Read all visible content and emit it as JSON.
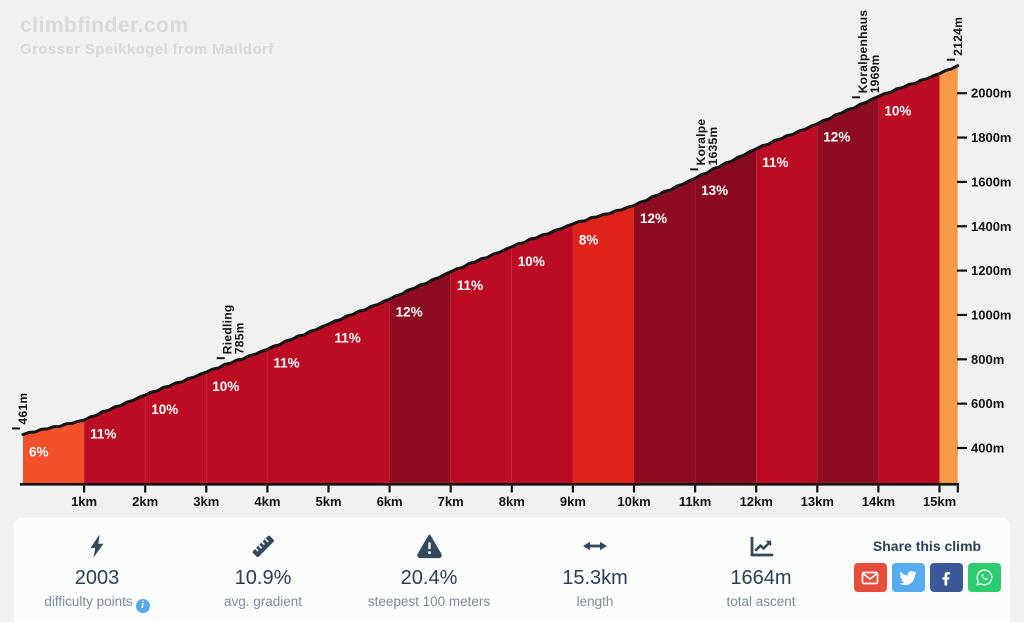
{
  "header": {
    "logo": "climbfinder.com",
    "subtitle": "Grosser Speikkogel from Maildorf"
  },
  "chart_data": {
    "type": "area",
    "title": "Grosser Speikkogel from Maildorf elevation profile",
    "x_unit": "km",
    "y_unit": "m",
    "length_km": 15.3,
    "start_elevation_m": 461,
    "end_elevation_m": 2124,
    "line_color": "#141414",
    "axis_color": "#141414",
    "profile_km": [
      0,
      1,
      2,
      3,
      4,
      5,
      6,
      7,
      8,
      9,
      10,
      11,
      12,
      13,
      14,
      15,
      15.3
    ],
    "profile_elev_m": [
      461,
      526,
      639,
      742,
      845,
      958,
      1071,
      1194,
      1307,
      1410,
      1493,
      1616,
      1749,
      1862,
      1985,
      2088,
      2124
    ],
    "segments": [
      {
        "from": 0,
        "to": 1,
        "label": "6%",
        "color": "#f3512c"
      },
      {
        "from": 1,
        "to": 2,
        "label": "11%",
        "color": "#bb0c23"
      },
      {
        "from": 2,
        "to": 3,
        "label": "10%",
        "color": "#bb0c23"
      },
      {
        "from": 3,
        "to": 4,
        "label": "10%",
        "color": "#bb0c23"
      },
      {
        "from": 4,
        "to": 5,
        "label": "11%",
        "color": "#bb0c23"
      },
      {
        "from": 5,
        "to": 6,
        "label": "11%",
        "color": "#bb0c23"
      },
      {
        "from": 6,
        "to": 7,
        "label": "12%",
        "color": "#8e0c22"
      },
      {
        "from": 7,
        "to": 8,
        "label": "11%",
        "color": "#bb0c23"
      },
      {
        "from": 8,
        "to": 9,
        "label": "10%",
        "color": "#bb0c23"
      },
      {
        "from": 9,
        "to": 10,
        "label": "8%",
        "color": "#e0231a"
      },
      {
        "from": 10,
        "to": 11,
        "label": "12%",
        "color": "#8e0c22"
      },
      {
        "from": 11,
        "to": 12,
        "label": "13%",
        "color": "#870a20"
      },
      {
        "from": 12,
        "to": 13,
        "label": "11%",
        "color": "#bb0c23"
      },
      {
        "from": 13,
        "to": 14,
        "label": "12%",
        "color": "#8e0c22"
      },
      {
        "from": 14,
        "to": 15,
        "label": "10%",
        "color": "#bb0c23"
      },
      {
        "from": 15,
        "to": 15.3,
        "label": "",
        "color": "#f79a48"
      }
    ],
    "markers": [
      {
        "km": 0,
        "lines": [
          "461m"
        ]
      },
      {
        "km": 3.35,
        "lines": [
          "Riedling",
          "785m"
        ]
      },
      {
        "km": 11.1,
        "lines": [
          "Koralpe",
          "1635m"
        ]
      },
      {
        "km": 13.75,
        "lines": [
          "Koralpenhaus",
          "1969m"
        ]
      },
      {
        "km": 15.3,
        "lines": [
          "2124m"
        ]
      }
    ],
    "x_ticks": [
      {
        "km": 1,
        "label": "1km"
      },
      {
        "km": 2,
        "label": "2km"
      },
      {
        "km": 3,
        "label": "3km"
      },
      {
        "km": 4,
        "label": "4km"
      },
      {
        "km": 5,
        "label": "5km"
      },
      {
        "km": 6,
        "label": "6km"
      },
      {
        "km": 7,
        "label": "7km"
      },
      {
        "km": 8,
        "label": "8km"
      },
      {
        "km": 9,
        "label": "9km"
      },
      {
        "km": 10,
        "label": "10km"
      },
      {
        "km": 11,
        "label": "11km"
      },
      {
        "km": 12,
        "label": "12km"
      },
      {
        "km": 13,
        "label": "13km"
      },
      {
        "km": 14,
        "label": "14km"
      },
      {
        "km": 15,
        "label": "15km"
      }
    ],
    "y_ticks": [
      {
        "m": 400,
        "label": "400m"
      },
      {
        "m": 600,
        "label": "600m"
      },
      {
        "m": 800,
        "label": "800m"
      },
      {
        "m": 1000,
        "label": "1000m"
      },
      {
        "m": 1200,
        "label": "1200m"
      },
      {
        "m": 1400,
        "label": "1400m"
      },
      {
        "m": 1600,
        "label": "1600m"
      },
      {
        "m": 1800,
        "label": "1800m"
      },
      {
        "m": 2000,
        "label": "2000m"
      }
    ]
  },
  "stats": [
    {
      "icon": "lightning",
      "value": "2003",
      "label": "difficulty points",
      "info_glyph": "i"
    },
    {
      "icon": "ruler",
      "value": "10.9%",
      "label": "avg. gradient"
    },
    {
      "icon": "warning",
      "value": "20.4%",
      "label": "steepest 100 meters"
    },
    {
      "icon": "arrows",
      "value": "15.3km",
      "label": "length"
    },
    {
      "icon": "chart",
      "value": "1664m",
      "label": "total ascent"
    }
  ],
  "share": {
    "title": "Share this climb",
    "buttons": [
      {
        "name": "email",
        "color": "#e74c3c"
      },
      {
        "name": "twitter",
        "color": "#55acee"
      },
      {
        "name": "facebook",
        "color": "#3b5998"
      },
      {
        "name": "whatsapp",
        "color": "#2ecc71"
      }
    ]
  }
}
